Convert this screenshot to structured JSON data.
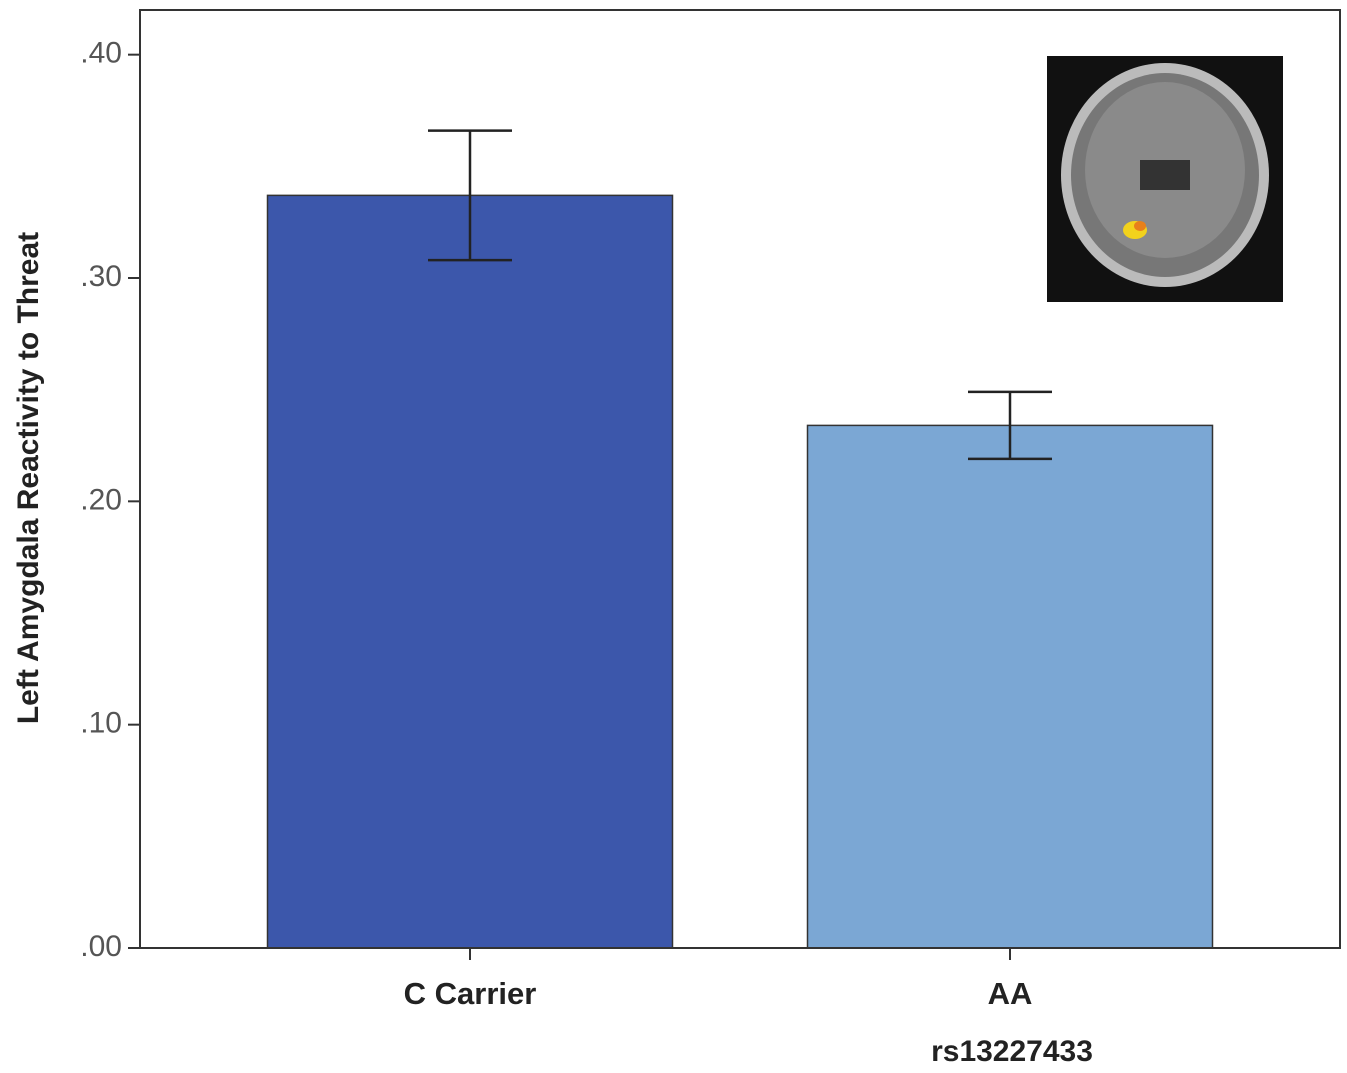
{
  "chart_data": {
    "type": "bar",
    "categories": [
      "C Carrier",
      "AA"
    ],
    "values": [
      0.337,
      0.234
    ],
    "errors": [
      0.029,
      0.015
    ],
    "colors": [
      "#3c57ab",
      "#7ba7d4"
    ],
    "xlabel": "rs13227433",
    "ylabel": "Left Amygdala Reactivity to Threat",
    "ylim": [
      0,
      0.42
    ],
    "yticks": [
      {
        "value": 0,
        "label": ".00"
      },
      {
        "value": 0.1,
        "label": ".10"
      },
      {
        "value": 0.2,
        "label": ".20"
      },
      {
        "value": 0.3,
        "label": ".30"
      },
      {
        "value": 0.4,
        "label": ".40"
      }
    ],
    "grid": false
  }
}
